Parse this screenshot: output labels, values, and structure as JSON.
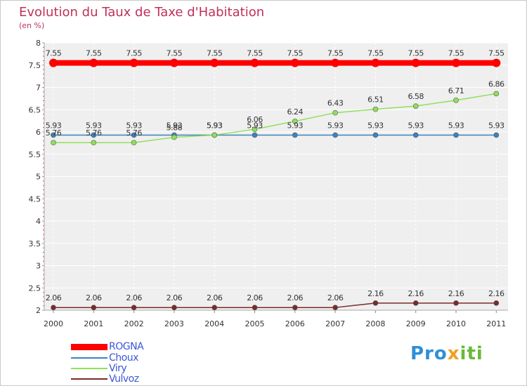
{
  "title": "Evolution du Taux de Taxe d'Habitation",
  "unit": "(en %)",
  "logo": {
    "part1": "Pro",
    "part2": "x",
    "part3": "iti"
  },
  "legend": [
    {
      "name": "ROGNA",
      "color": "#ff0000"
    },
    {
      "name": "Choux",
      "color": "#3b83c0"
    },
    {
      "name": "Viry",
      "color": "#90e05a"
    },
    {
      "name": "Vulvoz",
      "color": "#7a2a2a"
    }
  ],
  "chart_data": {
    "type": "line",
    "title": "Evolution du Taux de Taxe d'Habitation",
    "ylabel": "(en %)",
    "xlabel": "",
    "x": [
      "2000",
      "2001",
      "2002",
      "2003",
      "2004",
      "2005",
      "2006",
      "2007",
      "2008",
      "2009",
      "2010",
      "2011"
    ],
    "ylim": [
      2,
      8
    ],
    "yticks": [
      "2",
      "2.5",
      "3",
      "3.5",
      "4",
      "4.5",
      "5",
      "5.5",
      "6",
      "6.5",
      "7",
      "7.5",
      "8"
    ],
    "grid": true,
    "legend_position": "bottom-left",
    "series": [
      {
        "name": "ROGNA",
        "color": "#ff0000",
        "values": [
          7.55,
          7.55,
          7.55,
          7.55,
          7.55,
          7.55,
          7.55,
          7.55,
          7.55,
          7.55,
          7.55,
          7.55
        ],
        "labels": [
          "7.55",
          "7.55",
          "7.55",
          "7.55",
          "7.55",
          "7.55",
          "7.55",
          "7.55",
          "7.55",
          "7.55",
          "7.55",
          "7.55"
        ]
      },
      {
        "name": "Choux",
        "color": "#3b83c0",
        "values": [
          5.93,
          5.93,
          5.93,
          5.93,
          5.93,
          5.93,
          5.93,
          5.93,
          5.93,
          5.93,
          5.93,
          5.93
        ],
        "labels": [
          "5.93",
          "5.93",
          "5.93",
          "5.93",
          "5.93",
          "5.93",
          "5.93",
          "5.93",
          "5.93",
          "5.93",
          "5.93",
          "5.93"
        ]
      },
      {
        "name": "Viry",
        "color": "#90e05a",
        "values": [
          5.76,
          5.76,
          5.76,
          5.88,
          5.93,
          6.06,
          6.24,
          6.43,
          6.51,
          6.58,
          6.71,
          6.86
        ],
        "labels": [
          "5.76",
          "5.76",
          "5.76",
          "5.88",
          "5.93",
          "6.06",
          "6.24",
          "6.43",
          "6.51",
          "6.58",
          "6.71",
          "6.86"
        ]
      },
      {
        "name": "Vulvoz",
        "color": "#7a2a2a",
        "values": [
          2.06,
          2.06,
          2.06,
          2.06,
          2.06,
          2.06,
          2.06,
          2.06,
          2.16,
          2.16,
          2.16,
          2.16
        ],
        "labels": [
          "2.06",
          "2.06",
          "2.06",
          "2.06",
          "2.06",
          "2.06",
          "2.06",
          "2.06",
          "2.16",
          "2.16",
          "2.16",
          "2.16"
        ]
      }
    ]
  }
}
